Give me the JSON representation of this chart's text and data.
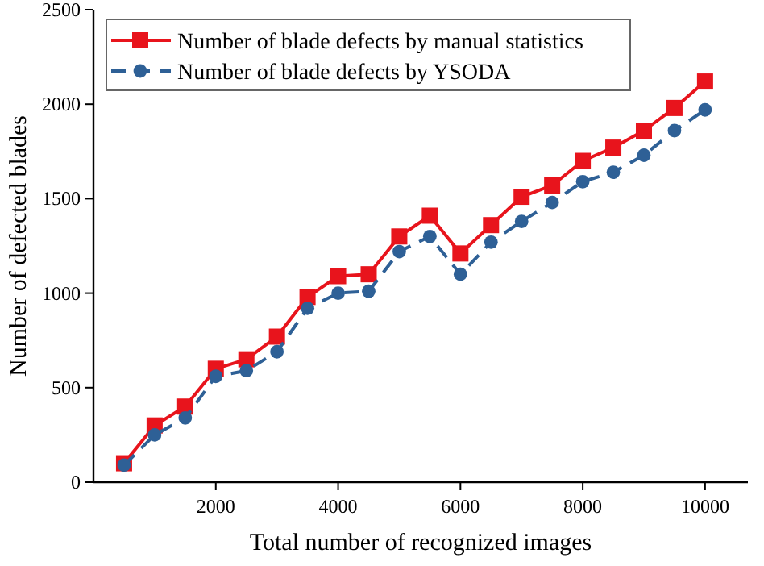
{
  "chart_data": {
    "type": "line",
    "xlabel": "Total number of recognized images",
    "ylabel": "Number of defected blades",
    "x": [
      500,
      1000,
      1500,
      2000,
      2500,
      3000,
      3500,
      4000,
      4500,
      5000,
      5500,
      6000,
      6500,
      7000,
      7500,
      8000,
      8500,
      9000,
      9500,
      10000
    ],
    "series": [
      {
        "name": "Number of blade defects by manual statistics",
        "color": "#e8141c",
        "marker": "square",
        "line_style": "solid",
        "values": [
          100,
          300,
          400,
          600,
          650,
          770,
          980,
          1090,
          1100,
          1300,
          1410,
          1210,
          1360,
          1510,
          1570,
          1700,
          1770,
          1860,
          1980,
          2120
        ]
      },
      {
        "name": "Number of blade defects by YSODA",
        "color": "#2e6096",
        "marker": "circle",
        "line_style": "dashed",
        "values": [
          90,
          250,
          340,
          560,
          590,
          690,
          920,
          1000,
          1010,
          1220,
          1300,
          1100,
          1270,
          1380,
          1480,
          1590,
          1640,
          1730,
          1860,
          1970
        ]
      }
    ],
    "xlim": [
      0,
      10700
    ],
    "xticks": [
      2000,
      4000,
      6000,
      8000,
      10000
    ],
    "ylim": [
      0,
      2500
    ],
    "yticks": [
      0,
      500,
      1000,
      1500,
      2000,
      2500
    ],
    "legend": "top left",
    "grid": false
  }
}
